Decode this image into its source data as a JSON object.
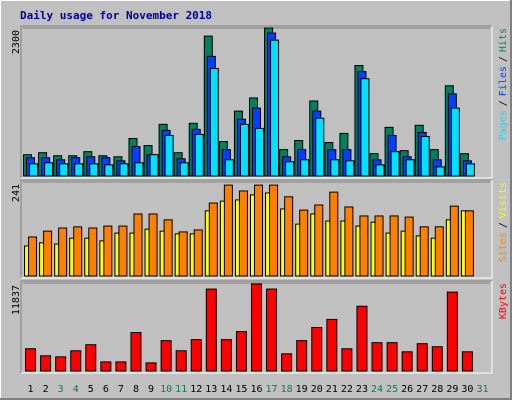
{
  "title": "Daily usage for November 2018",
  "legend_separator": "/",
  "chart_data": [
    {
      "type": "bar",
      "ylim": [
        0,
        2300
      ],
      "yticks": [
        2300
      ],
      "series": [
        {
          "name": "Hits",
          "color": "#00805c",
          "values": [
            331,
            362,
            315,
            315,
            378,
            315,
            299,
            583,
            473,
            803,
            362,
            819,
            2174,
            536,
            1008,
            1213,
            2300,
            410,
            551,
            1166,
            520,
            662,
            1717,
            347,
            756,
            394,
            788,
            410,
            1402,
            347,
            null
          ]
        },
        {
          "name": "Files",
          "color": "#0040ff",
          "values": [
            284,
            284,
            252,
            284,
            299,
            284,
            236,
            457,
            331,
            709,
            268,
            725,
            1859,
            410,
            882,
            1055,
            2221,
            299,
            410,
            1008,
            410,
            410,
            1622,
            252,
            630,
            299,
            677,
            252,
            1276,
            236,
            null
          ]
        },
        {
          "name": "Pages",
          "color": "#00e0ff",
          "values": [
            189,
            205,
            189,
            189,
            189,
            173,
            189,
            205,
            331,
            630,
            205,
            646,
            1670,
            252,
            803,
            740,
            2111,
            221,
            252,
            898,
            252,
            236,
            1512,
            173,
            378,
            252,
            614,
            142,
            1055,
            189,
            null
          ]
        }
      ]
    },
    {
      "type": "bar",
      "ylim": [
        0,
        241
      ],
      "yticks": [
        241
      ],
      "series": [
        {
          "name": "Visits",
          "color": "#ffff00",
          "values": [
            77,
            85,
            82,
            97,
            97,
            90,
            110,
            110,
            120,
            115,
            108,
            108,
            167,
            192,
            195,
            208,
            213,
            172,
            133,
            159,
            141,
            141,
            128,
            138,
            110,
            115,
            103,
            97,
            144,
            167,
            null
          ]
        },
        {
          "name": "Sites",
          "color": "#ff8000",
          "values": [
            100,
            115,
            123,
            126,
            123,
            128,
            128,
            159,
            159,
            144,
            113,
            118,
            187,
            233,
            218,
            233,
            233,
            203,
            169,
            182,
            215,
            177,
            154,
            154,
            154,
            151,
            126,
            126,
            179,
            167,
            null
          ]
        }
      ]
    },
    {
      "type": "bar",
      "ylim": [
        0,
        11837
      ],
      "yticks": [
        11837
      ],
      "categories": [
        "1",
        "2",
        "3",
        "4",
        "5",
        "6",
        "7",
        "8",
        "9",
        "10",
        "11",
        "12",
        "13",
        "14",
        "15",
        "16",
        "17",
        "18",
        "19",
        "20",
        "21",
        "22",
        "23",
        "24",
        "25",
        "26",
        "27",
        "28",
        "29",
        "30",
        "31"
      ],
      "category_colors": [
        "#000000",
        "#000000",
        "#00805c",
        "#00805c",
        "#000000",
        "#000000",
        "#000000",
        "#000000",
        "#000000",
        "#00805c",
        "#00805c",
        "#000000",
        "#000000",
        "#000000",
        "#000000",
        "#000000",
        "#00805c",
        "#00805c",
        "#000000",
        "#000000",
        "#000000",
        "#000000",
        "#000000",
        "#00805c",
        "#00805c",
        "#000000",
        "#000000",
        "#000000",
        "#000000",
        "#000000",
        "#00805c"
      ],
      "series": [
        {
          "name": "KBytes",
          "color": "#ff0000",
          "values": [
            2993,
            2041,
            1905,
            2721,
            3537,
            1224,
            1224,
            5170,
            1088,
            4082,
            2721,
            4218,
            11021,
            4218,
            5306,
            11701,
            11021,
            2313,
            4082,
            5850,
            6939,
            2993,
            8708,
            3810,
            3810,
            2585,
            3673,
            3265,
            10612,
            2585,
            null
          ]
        }
      ]
    }
  ]
}
